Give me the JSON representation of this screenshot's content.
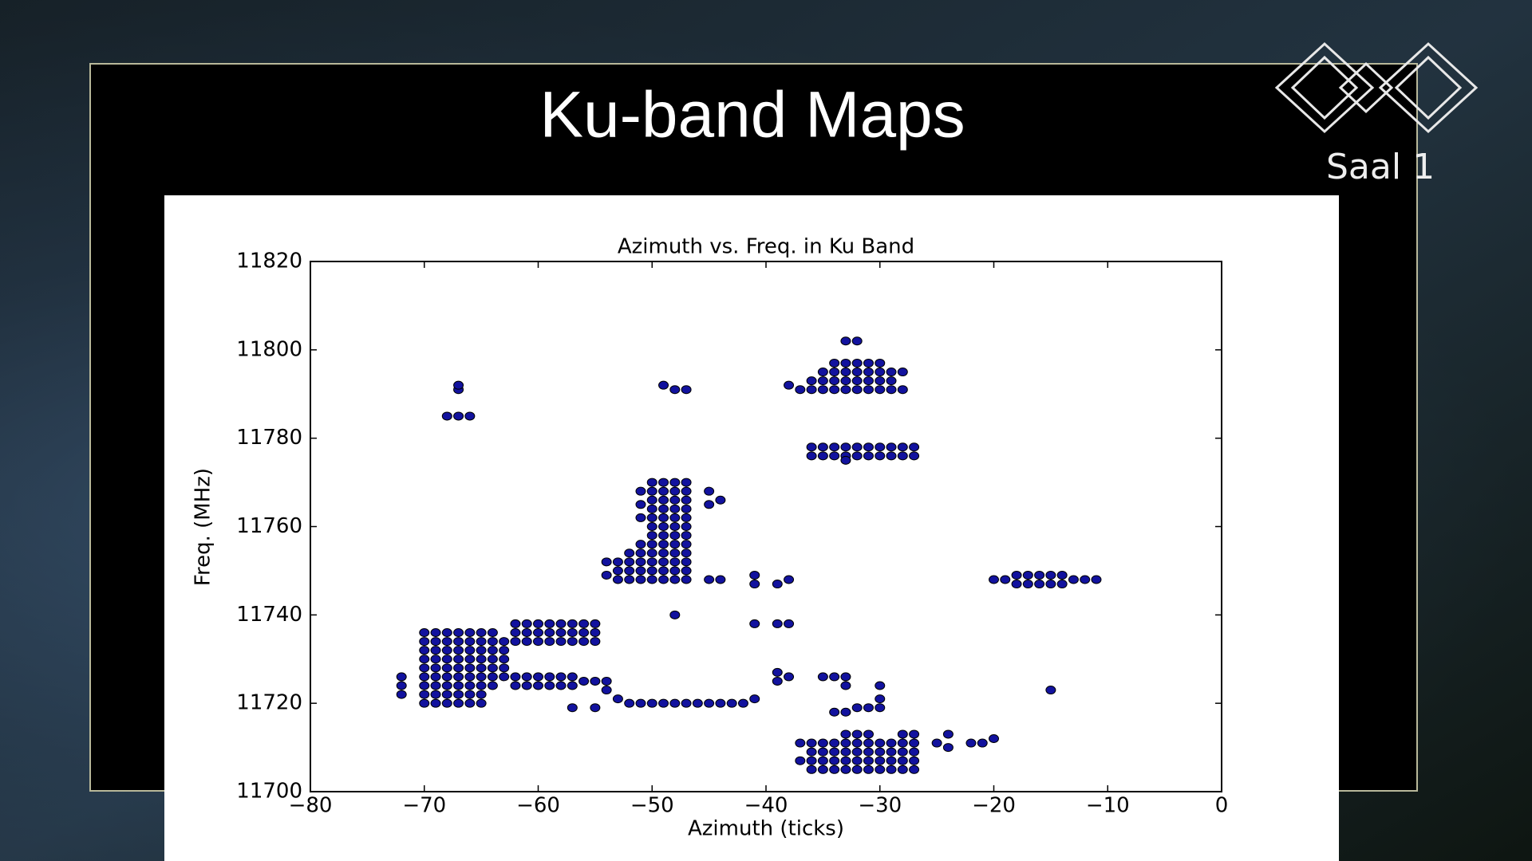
{
  "slide": {
    "title": "Ku-band Maps",
    "room": "Saal 1"
  },
  "chart_data": {
    "type": "scatter",
    "title": "Azimuth vs. Freq. in Ku Band",
    "xlabel": "Azimuth (ticks)",
    "ylabel": "Freq. (MHz)",
    "color": "#12129e",
    "xlim": [
      -80,
      0
    ],
    "ylim": [
      11700,
      11820
    ],
    "xticks": [
      {
        "value": -80,
        "label": "−80"
      },
      {
        "value": -70,
        "label": "−70"
      },
      {
        "value": -60,
        "label": "−60"
      },
      {
        "value": -50,
        "label": "−50"
      },
      {
        "value": -40,
        "label": "−40"
      },
      {
        "value": -30,
        "label": "−30"
      },
      {
        "value": -20,
        "label": "−20"
      },
      {
        "value": -10,
        "label": "−10"
      },
      0
    ],
    "yticks": [
      11700,
      11720,
      11740,
      11760,
      11780,
      11800,
      11820
    ],
    "x": [
      -72,
      -72,
      -72,
      -70,
      -70,
      -70,
      -70,
      -70,
      -70,
      -70,
      -70,
      -70,
      -69,
      -69,
      -69,
      -69,
      -69,
      -69,
      -69,
      -69,
      -69,
      -68,
      -68,
      -68,
      -68,
      -68,
      -68,
      -68,
      -68,
      -68,
      -67,
      -67,
      -67,
      -67,
      -67,
      -67,
      -67,
      -67,
      -67,
      -66,
      -66,
      -66,
      -66,
      -66,
      -66,
      -66,
      -66,
      -66,
      -65,
      -65,
      -65,
      -65,
      -65,
      -65,
      -65,
      -65,
      -65,
      -64,
      -64,
      -64,
      -64,
      -64,
      -64,
      -64,
      -63,
      -63,
      -63,
      -63,
      -63,
      -62,
      -62,
      -62,
      -61,
      -61,
      -61,
      -60,
      -60,
      -60,
      -59,
      -59,
      -59,
      -58,
      -58,
      -58,
      -57,
      -57,
      -57,
      -56,
      -56,
      -56,
      -55,
      -55,
      -55,
      -62,
      -62,
      -61,
      -61,
      -60,
      -60,
      -59,
      -59,
      -58,
      -58,
      -57,
      -57,
      -56,
      -55,
      -54,
      -57,
      -55,
      -54,
      -53,
      -52,
      -51,
      -50,
      -49,
      -48,
      -47,
      -46,
      -45,
      -44,
      -43,
      -42,
      -41,
      -48,
      -54,
      -54,
      -53,
      -53,
      -53,
      -52,
      -52,
      -52,
      -52,
      -51,
      -51,
      -51,
      -51,
      -51,
      -51,
      -51,
      -51,
      -50,
      -50,
      -50,
      -50,
      -50,
      -50,
      -50,
      -50,
      -50,
      -50,
      -50,
      -50,
      -49,
      -49,
      -49,
      -49,
      -49,
      -49,
      -49,
      -49,
      -49,
      -49,
      -49,
      -49,
      -48,
      -48,
      -48,
      -48,
      -48,
      -48,
      -48,
      -48,
      -48,
      -48,
      -48,
      -48,
      -47,
      -47,
      -47,
      -47,
      -47,
      -47,
      -47,
      -47,
      -47,
      -47,
      -47,
      -47,
      -45,
      -45,
      -45,
      -44,
      -44,
      -41,
      -41,
      -41,
      -39,
      -38,
      -39,
      -38,
      -39,
      -39,
      -38,
      -35,
      -34,
      -33,
      -33,
      -30,
      -30,
      -30,
      -31,
      -32,
      -34,
      -33,
      -37,
      -37,
      -36,
      -36,
      -36,
      -36,
      -35,
      -35,
      -35,
      -35,
      -34,
      -34,
      -34,
      -34,
      -33,
      -33,
      -33,
      -33,
      -32,
      -32,
      -32,
      -32,
      -31,
      -31,
      -31,
      -31,
      -30,
      -30,
      -30,
      -30,
      -29,
      -29,
      -29,
      -29,
      -28,
      -28,
      -28,
      -28,
      -27,
      -27,
      -27,
      -27,
      -33,
      -32,
      -31,
      -28,
      -27,
      -25,
      -24,
      -24,
      -22,
      -21,
      -20,
      -20,
      -19,
      -18,
      -18,
      -17,
      -17,
      -16,
      -16,
      -15,
      -15,
      -14,
      -14,
      -13,
      -12,
      -11,
      -15,
      -33,
      -32,
      -38,
      -37,
      -36,
      -36,
      -35,
      -35,
      -35,
      -34,
      -34,
      -34,
      -34,
      -33,
      -33,
      -33,
      -33,
      -32,
      -32,
      -32,
      -32,
      -31,
      -31,
      -31,
      -31,
      -30,
      -30,
      -30,
      -30,
      -29,
      -29,
      -29,
      -28,
      -28,
      -36,
      -36,
      -35,
      -35,
      -34,
      -34,
      -33,
      -33,
      -32,
      -32,
      -31,
      -31,
      -30,
      -30,
      -29,
      -29,
      -28,
      -28,
      -27,
      -27,
      -33,
      -68,
      -67,
      -66,
      -67,
      -67,
      -49,
      -48,
      -47
    ],
    "values": [
      11722,
      11724,
      11726,
      11720,
      11722,
      11724,
      11726,
      11728,
      11730,
      11732,
      11734,
      11736,
      11720,
      11722,
      11724,
      11726,
      11728,
      11730,
      11732,
      11734,
      11736,
      11720,
      11722,
      11724,
      11726,
      11728,
      11730,
      11732,
      11734,
      11736,
      11720,
      11722,
      11724,
      11726,
      11728,
      11730,
      11732,
      11734,
      11736,
      11720,
      11722,
      11724,
      11726,
      11728,
      11730,
      11732,
      11734,
      11736,
      11720,
      11722,
      11724,
      11726,
      11728,
      11730,
      11732,
      11734,
      11736,
      11724,
      11726,
      11728,
      11730,
      11732,
      11734,
      11736,
      11726,
      11728,
      11730,
      11732,
      11734,
      11734,
      11736,
      11738,
      11734,
      11736,
      11738,
      11734,
      11736,
      11738,
      11734,
      11736,
      11738,
      11734,
      11736,
      11738,
      11734,
      11736,
      11738,
      11734,
      11736,
      11738,
      11734,
      11736,
      11738,
      11724,
      11726,
      11724,
      11726,
      11724,
      11726,
      11724,
      11726,
      11724,
      11726,
      11724,
      11726,
      11725,
      11725,
      11725,
      11719,
      11719,
      11723,
      11721,
      11720,
      11720,
      11720,
      11720,
      11720,
      11720,
      11720,
      11720,
      11720,
      11720,
      11720,
      11721,
      11740,
      11749,
      11752,
      11748,
      11750,
      11752,
      11748,
      11750,
      11752,
      11754,
      11748,
      11750,
      11752,
      11754,
      11756,
      11762,
      11765,
      11768,
      11748,
      11750,
      11752,
      11754,
      11756,
      11758,
      11760,
      11762,
      11764,
      11766,
      11768,
      11770,
      11748,
      11750,
      11752,
      11754,
      11756,
      11758,
      11760,
      11762,
      11764,
      11766,
      11768,
      11770,
      11748,
      11750,
      11752,
      11754,
      11756,
      11758,
      11760,
      11762,
      11764,
      11766,
      11768,
      11770,
      11748,
      11750,
      11752,
      11754,
      11756,
      11758,
      11760,
      11762,
      11764,
      11766,
      11768,
      11770,
      11748,
      11765,
      11768,
      11748,
      11766,
      11747,
      11749,
      11738,
      11738,
      11738,
      11747,
      11748,
      11727,
      11725,
      11726,
      11726,
      11726,
      11726,
      11724,
      11724,
      11721,
      11719,
      11719,
      11719,
      11718,
      11718,
      11707,
      11711,
      11705,
      11707,
      11709,
      11711,
      11705,
      11707,
      11709,
      11711,
      11705,
      11707,
      11709,
      11711,
      11705,
      11707,
      11709,
      11711,
      11705,
      11707,
      11709,
      11711,
      11705,
      11707,
      11709,
      11711,
      11705,
      11707,
      11709,
      11711,
      11705,
      11707,
      11709,
      11711,
      11705,
      11707,
      11709,
      11711,
      11705,
      11707,
      11709,
      11711,
      11713,
      11713,
      11713,
      11713,
      11713,
      11711,
      11710,
      11713,
      11711,
      11711,
      11712,
      11748,
      11748,
      11747,
      11749,
      11747,
      11749,
      11747,
      11749,
      11747,
      11749,
      11747,
      11749,
      11748,
      11748,
      11748,
      11723,
      11802,
      11802,
      11792,
      11791,
      11791,
      11793,
      11791,
      11793,
      11795,
      11791,
      11793,
      11795,
      11797,
      11791,
      11793,
      11795,
      11797,
      11791,
      11793,
      11795,
      11797,
      11791,
      11793,
      11795,
      11797,
      11791,
      11793,
      11795,
      11797,
      11791,
      11793,
      11795,
      11791,
      11795,
      11776,
      11778,
      11776,
      11778,
      11776,
      11778,
      11776,
      11778,
      11776,
      11778,
      11776,
      11778,
      11776,
      11778,
      11776,
      11778,
      11776,
      11778,
      11776,
      11778,
      11775,
      11785,
      11785,
      11785,
      11791,
      11792,
      11792,
      11791,
      11791
    ]
  }
}
